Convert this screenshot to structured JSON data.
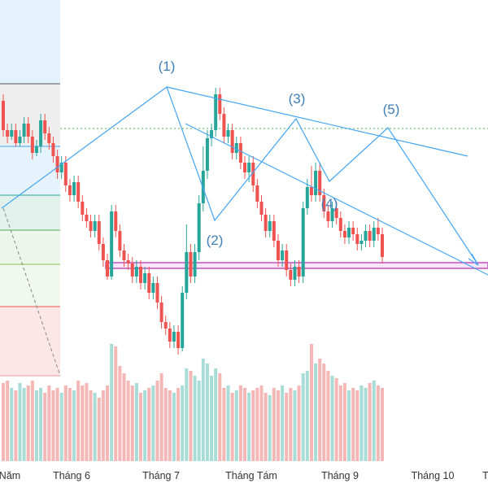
{
  "chart_data": {
    "type": "candlestick",
    "title": "",
    "xlabel": "",
    "ylabel": "",
    "x_ticks": [
      "Năm",
      "Tháng 6",
      "Tháng 7",
      "Tháng Tám",
      "Tháng 9",
      "Tháng 10",
      "T"
    ],
    "wave_labels": [
      "(1)",
      "(2)",
      "(3)",
      "(4)",
      "(5)"
    ],
    "grid": false,
    "colors": {
      "up": "#26a69a",
      "down": "#ef5350",
      "line": "#42a5f5",
      "label": "#3d7fb8",
      "target": "#c050c0",
      "ref": "#4caf50"
    },
    "candles": [
      [
        258,
        240,
        262,
        236
      ],
      [
        240,
        236,
        244,
        232
      ],
      [
        236,
        240,
        244,
        234
      ],
      [
        240,
        232,
        244,
        230
      ],
      [
        232,
        236,
        240,
        230
      ],
      [
        236,
        244,
        248,
        232
      ],
      [
        244,
        236,
        248,
        232
      ],
      [
        236,
        226,
        240,
        222
      ],
      [
        226,
        230,
        234,
        224
      ],
      [
        230,
        246,
        250,
        226
      ],
      [
        246,
        238,
        250,
        234
      ],
      [
        238,
        232,
        242,
        228
      ],
      [
        232,
        224,
        236,
        220
      ],
      [
        224,
        214,
        228,
        210
      ],
      [
        214,
        220,
        224,
        210
      ],
      [
        220,
        206,
        224,
        202
      ],
      [
        206,
        200,
        210,
        196
      ],
      [
        200,
        208,
        212,
        196
      ],
      [
        208,
        196,
        212,
        192
      ],
      [
        196,
        188,
        200,
        184
      ],
      [
        188,
        184,
        192,
        180
      ],
      [
        184,
        178,
        188,
        174
      ],
      [
        178,
        184,
        188,
        174
      ],
      [
        184,
        170,
        188,
        166
      ],
      [
        170,
        160,
        174,
        156
      ],
      [
        160,
        150,
        164,
        148
      ],
      [
        150,
        190,
        194,
        148
      ],
      [
        190,
        178,
        194,
        174
      ],
      [
        178,
        166,
        182,
        162
      ],
      [
        166,
        160,
        170,
        156
      ],
      [
        160,
        158,
        164,
        154
      ],
      [
        158,
        150,
        162,
        146
      ],
      [
        150,
        156,
        160,
        146
      ],
      [
        156,
        146,
        160,
        142
      ],
      [
        146,
        152,
        156,
        142
      ],
      [
        152,
        140,
        156,
        136
      ],
      [
        140,
        146,
        150,
        136
      ],
      [
        146,
        134,
        150,
        130
      ],
      [
        134,
        122,
        138,
        118
      ],
      [
        122,
        118,
        126,
        114
      ],
      [
        118,
        110,
        122,
        106
      ],
      [
        110,
        116,
        120,
        106
      ],
      [
        116,
        106,
        120,
        102
      ],
      [
        106,
        140,
        144,
        104
      ],
      [
        140,
        165,
        182,
        136
      ],
      [
        165,
        150,
        170,
        146
      ],
      [
        150,
        165,
        170,
        146
      ],
      [
        165,
        195,
        200,
        160
      ],
      [
        195,
        215,
        230,
        190
      ],
      [
        215,
        235,
        240,
        210
      ],
      [
        235,
        240,
        244,
        230
      ],
      [
        240,
        262,
        266,
        236
      ],
      [
        262,
        250,
        266,
        246
      ],
      [
        250,
        236,
        254,
        232
      ],
      [
        236,
        240,
        244,
        232
      ],
      [
        240,
        226,
        244,
        222
      ],
      [
        226,
        232,
        236,
        222
      ],
      [
        232,
        220,
        236,
        216
      ],
      [
        220,
        214,
        224,
        210
      ],
      [
        214,
        220,
        224,
        208
      ],
      [
        220,
        206,
        224,
        202
      ],
      [
        206,
        196,
        210,
        192
      ],
      [
        196,
        188,
        200,
        184
      ],
      [
        188,
        178,
        192,
        174
      ],
      [
        178,
        184,
        188,
        174
      ],
      [
        184,
        172,
        188,
        168
      ],
      [
        172,
        160,
        176,
        156
      ],
      [
        160,
        166,
        170,
        156
      ],
      [
        166,
        154,
        170,
        150
      ],
      [
        154,
        148,
        158,
        144
      ],
      [
        148,
        156,
        160,
        144
      ],
      [
        156,
        150,
        160,
        146
      ],
      [
        150,
        192,
        196,
        146
      ],
      [
        192,
        205,
        210,
        188
      ],
      [
        205,
        200,
        218,
        196
      ],
      [
        200,
        215,
        220,
        196
      ],
      [
        215,
        200,
        220,
        196
      ],
      [
        200,
        190,
        204,
        186
      ],
      [
        190,
        184,
        194,
        180
      ],
      [
        184,
        192,
        196,
        180
      ],
      [
        192,
        186,
        196,
        182
      ],
      [
        186,
        178,
        190,
        174
      ],
      [
        178,
        174,
        182,
        170
      ],
      [
        174,
        180,
        184,
        170
      ],
      [
        180,
        176,
        184,
        172
      ],
      [
        176,
        170,
        180,
        166
      ],
      [
        170,
        172,
        176,
        166
      ],
      [
        172,
        178,
        182,
        168
      ],
      [
        178,
        172,
        182,
        168
      ],
      [
        172,
        180,
        184,
        168
      ],
      [
        180,
        176,
        186,
        172
      ],
      [
        176,
        162,
        180,
        158
      ]
    ],
    "volume": [
      64,
      66,
      60,
      58,
      64,
      60,
      62,
      66,
      58,
      60,
      56,
      62,
      58,
      60,
      56,
      62,
      60,
      58,
      66,
      62,
      64,
      58,
      56,
      52,
      58,
      62,
      96,
      94,
      78,
      72,
      66,
      62,
      64,
      56,
      58,
      60,
      62,
      66,
      72,
      60,
      58,
      56,
      60,
      62,
      76,
      74,
      70,
      66,
      84,
      80,
      70,
      76,
      72,
      60,
      62,
      56,
      58,
      62,
      60,
      56,
      58,
      60,
      62,
      56,
      54,
      60,
      58,
      62,
      56,
      60,
      58,
      62,
      72,
      74,
      96,
      80,
      84,
      80,
      74,
      70,
      68,
      62,
      64,
      58,
      60,
      58,
      62,
      60,
      64,
      66,
      62,
      60
    ]
  }
}
